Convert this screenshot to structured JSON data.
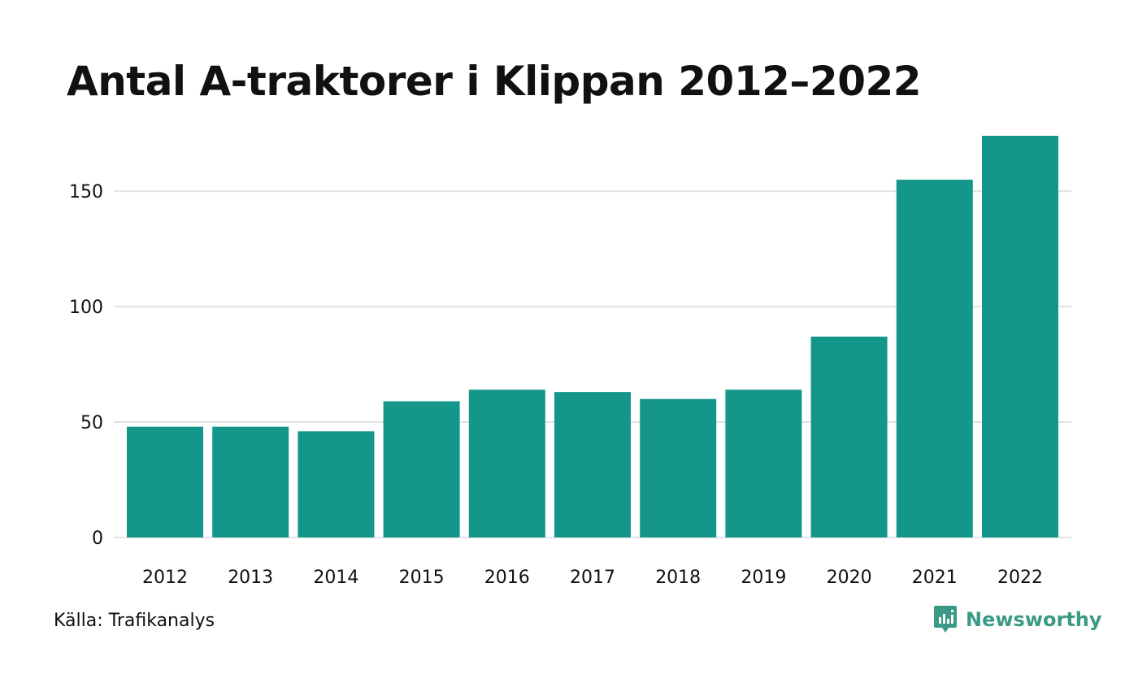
{
  "title": "Antal A-traktorer i Klippan 2012–2022",
  "source": "Källa: Trafikanalys",
  "brand": {
    "name": "Newsworthy",
    "logo_icon": "newsworthy-logo-icon",
    "color": "#3a9a86"
  },
  "colors": {
    "bar": "#15968a",
    "grid": "#e2e2e2",
    "text": "#111111"
  },
  "chart_data": {
    "type": "bar",
    "title": "Antal A-traktorer i Klippan 2012–2022",
    "xlabel": "",
    "ylabel": "",
    "categories": [
      "2012",
      "2013",
      "2014",
      "2015",
      "2016",
      "2017",
      "2018",
      "2019",
      "2020",
      "2021",
      "2022"
    ],
    "values": [
      48,
      48,
      46,
      59,
      64,
      63,
      60,
      64,
      87,
      155,
      174
    ],
    "ylim": [
      0,
      174
    ],
    "yticks": [
      0,
      50,
      100,
      150
    ],
    "ytick_labels": [
      "0",
      "50",
      "100",
      "150"
    ],
    "grid": true,
    "legend": "none"
  }
}
